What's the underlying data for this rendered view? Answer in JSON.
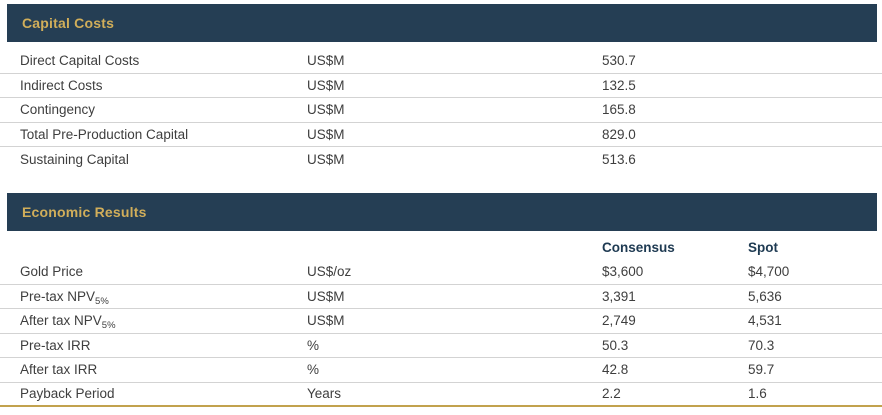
{
  "colors": {
    "header_bg": "#253E54",
    "header_text_gold": "#D1AE5A",
    "column_header_text": "#1E3A52",
    "body_text": "#3E3E3E",
    "row_divider": "#D3D3D3",
    "bottom_gold_divider": "#C2A24E"
  },
  "capital": {
    "title": "Capital Costs",
    "rows": [
      {
        "label": "Direct Capital Costs",
        "unit": "US$M",
        "value": "530.7"
      },
      {
        "label": "Indirect Costs",
        "unit": "US$M",
        "value": "132.5"
      },
      {
        "label": "Contingency",
        "unit": "US$M",
        "value": "165.8"
      },
      {
        "label": "Total Pre-Production Capital",
        "unit": "US$M",
        "value": "829.0"
      },
      {
        "label": "Sustaining Capital",
        "unit": "US$M",
        "value": "513.6"
      }
    ]
  },
  "economic": {
    "title": "Economic Results",
    "col_headers": {
      "consensus": "Consensus",
      "spot": "Spot"
    },
    "rows": [
      {
        "label": "Gold Price",
        "sub": "",
        "unit": "US$/oz",
        "consensus": "$3,600",
        "spot": "$4,700"
      },
      {
        "label": "Pre-tax NPV",
        "sub": "5%",
        "unit": "US$M",
        "consensus": "3,391",
        "spot": "5,636"
      },
      {
        "label": "After tax NPV",
        "sub": "5%",
        "unit": "US$M",
        "consensus": "2,749",
        "spot": "4,531"
      },
      {
        "label": "Pre-tax IRR",
        "sub": "",
        "unit": "%",
        "consensus": "50.3",
        "spot": "70.3"
      },
      {
        "label": "After tax IRR",
        "sub": "",
        "unit": "%",
        "consensus": "42.8",
        "spot": "59.7"
      },
      {
        "label": "Payback Period",
        "sub": "",
        "unit": "Years",
        "consensus": "2.2",
        "spot": "1.6"
      }
    ]
  }
}
